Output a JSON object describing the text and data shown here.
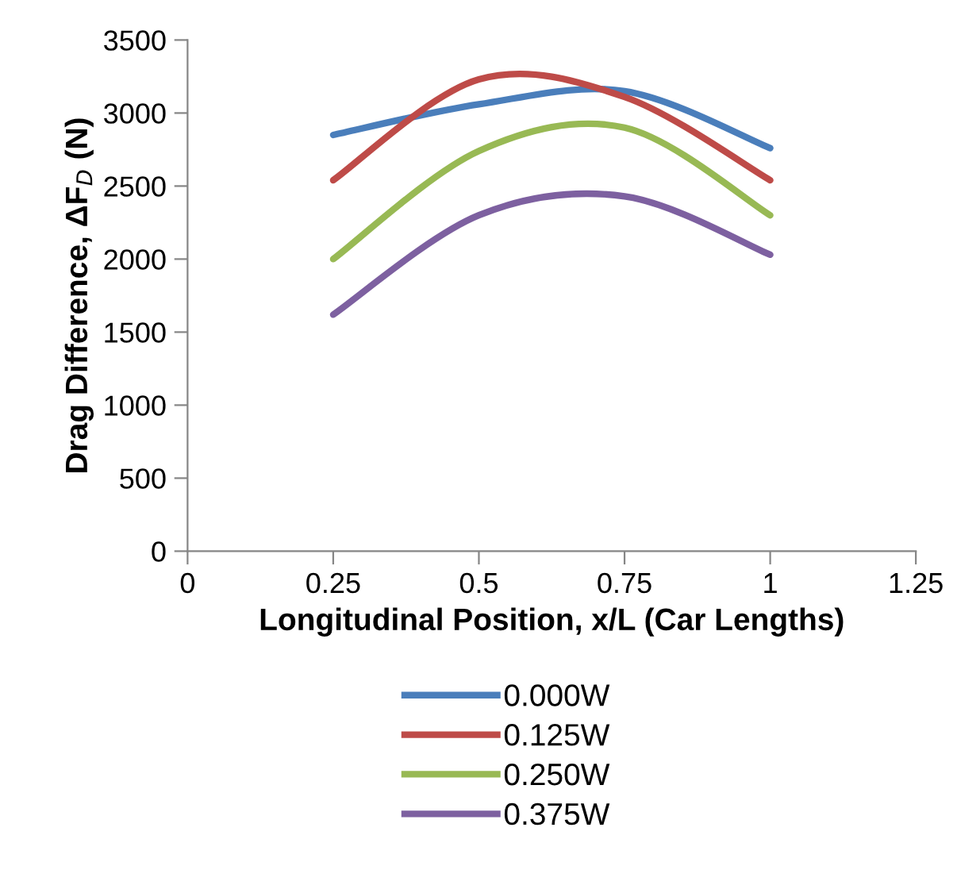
{
  "chart_data": {
    "type": "line",
    "xlabel": "Longitudinal Position, x/L (Car Lengths)",
    "ylabel": "Drag Difference, ΔF$_{D}$ (N)",
    "x": [
      0.25,
      0.5,
      0.75,
      1
    ],
    "series": [
      {
        "name": "0.000W",
        "color": "#4a7ebb",
        "values": [
          2850,
          3060,
          3150,
          2760
        ]
      },
      {
        "name": "0.125W",
        "color": "#be4b48",
        "values": [
          2540,
          3230,
          3110,
          2540
        ]
      },
      {
        "name": "0.250W",
        "color": "#98b954",
        "values": [
          2000,
          2740,
          2900,
          2300
        ]
      },
      {
        "name": "0.375W",
        "color": "#7d60a0",
        "values": [
          1620,
          2300,
          2430,
          2030
        ]
      }
    ],
    "xlim": [
      0,
      1.25
    ],
    "xticks": [
      0,
      0.25,
      0.5,
      0.75,
      1,
      1.25
    ],
    "ylim": [
      0,
      3500
    ],
    "yticks": [
      0,
      500,
      1000,
      1500,
      2000,
      2500,
      3000,
      3500
    ],
    "grid": false,
    "legend": "bottom",
    "marker": "none",
    "line_style": "solid"
  }
}
